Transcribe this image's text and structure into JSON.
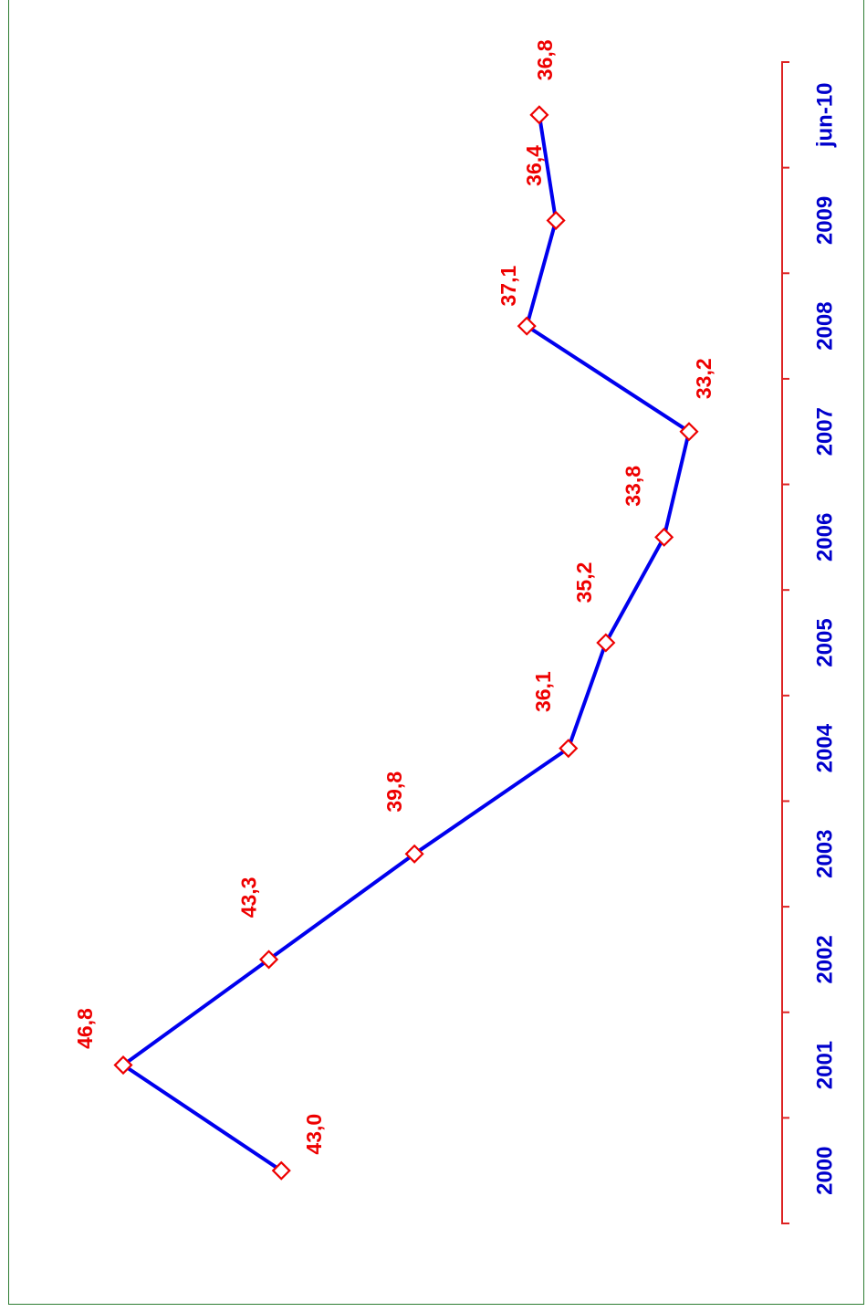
{
  "chart_data": {
    "type": "line",
    "title": "",
    "xlabel": "",
    "ylabel": "",
    "categories": [
      "2000",
      "2001",
      "2002",
      "2003",
      "2004",
      "2005",
      "2006",
      "2007",
      "2008",
      "2009",
      "jun-10"
    ],
    "series": [
      {
        "values": [
          43.0,
          46.8,
          43.3,
          39.8,
          36.1,
          35.2,
          33.8,
          33.2,
          37.1,
          36.4,
          36.8
        ],
        "labels": [
          "43,0",
          "46,8",
          "43,3",
          "39,8",
          "36,1",
          "35,2",
          "33,8",
          "33,2",
          "37,1",
          "36,4",
          "36,8"
        ],
        "color": "#0000ee",
        "marker": "diamond",
        "marker_color": "#ee0000"
      }
    ],
    "label_color": "#ee0000",
    "category_color": "#0000cc",
    "axis_color": "#dd2222",
    "frame_color": "#2e7d32",
    "orientation": "rotated-90",
    "grid": false,
    "legend": "none"
  }
}
